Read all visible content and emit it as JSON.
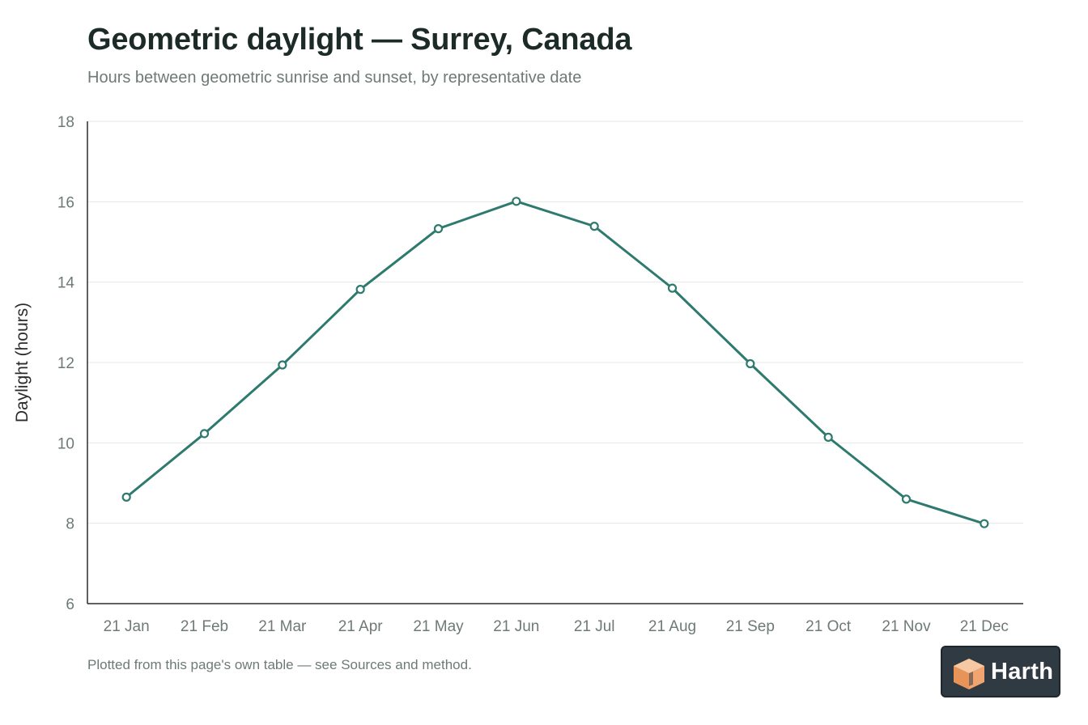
{
  "header": {
    "title": "Geometric daylight — Surrey, Canada",
    "subtitle": "Hours between geometric sunrise and sunset, by representative date"
  },
  "footnote": "Plotted from this page's own table — see Sources and method.",
  "logo": {
    "text": "Harth",
    "icon": "harth-cube-logo-icon"
  },
  "colors": {
    "line": "#2e7a6e",
    "grid": "#e6e8e7",
    "axis": "#2b2b2b",
    "tick_text": "#6e7a76",
    "title": "#1c2b27",
    "logo_bg": "#2f3a43",
    "logo_accent": "#f0a470"
  },
  "chart_data": {
    "type": "line",
    "title": "Geometric daylight — Surrey, Canada",
    "subtitle": "Hours between geometric sunrise and sunset, by representative date",
    "xlabel": "",
    "ylabel": "Daylight (hours)",
    "categories": [
      "21 Jan",
      "21 Feb",
      "21 Mar",
      "21 Apr",
      "21 May",
      "21 Jun",
      "21 Jul",
      "21 Aug",
      "21 Sep",
      "21 Oct",
      "21 Nov",
      "21 Dec"
    ],
    "series": [
      {
        "values": [
          8.65,
          10.23,
          11.94,
          13.82,
          15.33,
          16.01,
          15.39,
          13.85,
          11.97,
          10.14,
          8.6,
          7.99
        ]
      }
    ],
    "ylim": [
      6,
      18
    ],
    "yticks": [
      6,
      8,
      10,
      12,
      14,
      16,
      18
    ],
    "grid": true,
    "legend": "none",
    "markers": "hollow-circle"
  }
}
